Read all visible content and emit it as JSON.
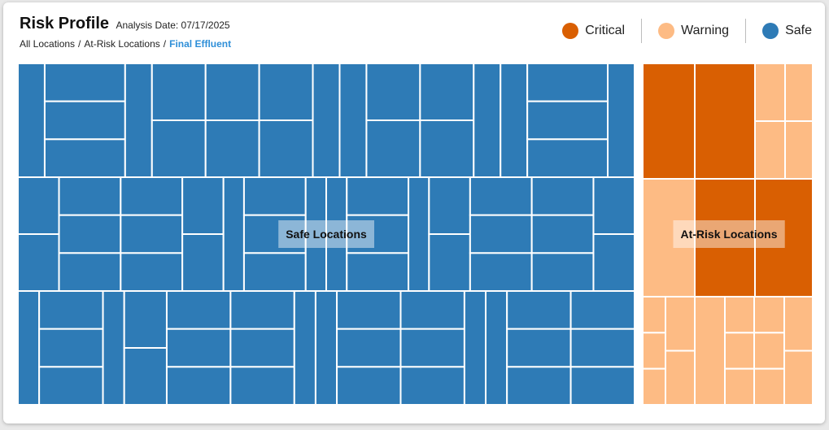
{
  "header": {
    "title": "Risk Profile",
    "analysis_date": "Analysis Date: 07/17/2025"
  },
  "breadcrumb": [
    {
      "label": "All Locations",
      "active": false
    },
    {
      "label": "At-Risk Locations",
      "active": false
    },
    {
      "label": "Final Effluent",
      "active": true
    }
  ],
  "breadcrumb_separator": "/",
  "legend": [
    {
      "label": "Critical",
      "color": "#d95f02"
    },
    {
      "label": "Warning",
      "color": "#fdbb84"
    },
    {
      "label": "Safe",
      "color": "#2e7bb6"
    }
  ],
  "chart_data": {
    "type": "treemap",
    "groups": [
      {
        "label": "Safe Locations",
        "status": "Safe",
        "color": "#2e7bb6",
        "bands": [
          [
            [
              1
            ],
            [
              1,
              1,
              1
            ],
            [
              1
            ],
            [
              1,
              1
            ],
            [
              1,
              1
            ],
            [
              1,
              1
            ],
            [
              1
            ],
            [
              1
            ],
            [
              1,
              1
            ],
            [
              1,
              1
            ],
            [
              1
            ],
            [
              1
            ],
            [
              1,
              1,
              1
            ],
            [
              1
            ]
          ],
          [
            [
              1,
              1
            ],
            [
              1,
              1,
              1
            ],
            [
              1,
              1,
              1
            ],
            [
              1,
              1
            ],
            [
              1
            ],
            [
              1,
              1,
              1
            ],
            [
              1
            ],
            [
              1
            ],
            [
              1,
              1,
              1
            ],
            [
              1
            ],
            [
              1,
              1
            ],
            [
              1,
              1,
              1
            ],
            [
              1,
              1,
              1
            ],
            [
              1,
              1
            ]
          ],
          [
            [
              1
            ],
            [
              1,
              1,
              1
            ],
            [
              1
            ],
            [
              1,
              1
            ],
            [
              1,
              1,
              1
            ],
            [
              1,
              1,
              1
            ],
            [
              1
            ],
            [
              1
            ],
            [
              1,
              1,
              1
            ],
            [
              1,
              1,
              1
            ],
            [
              1
            ],
            [
              1
            ],
            [
              1,
              1,
              1
            ],
            [
              1,
              1,
              1
            ]
          ]
        ]
      },
      {
        "label": "At-Risk Locations",
        "status": "At-Risk",
        "blocks": [
          {
            "status": "Critical",
            "color": "#d95f02",
            "size": 12
          },
          {
            "status": "Warning",
            "color": "#fdbb84",
            "size": 6
          },
          {
            "status": "Warning",
            "color": "#fdbb84",
            "size": 12
          }
        ]
      }
    ]
  }
}
